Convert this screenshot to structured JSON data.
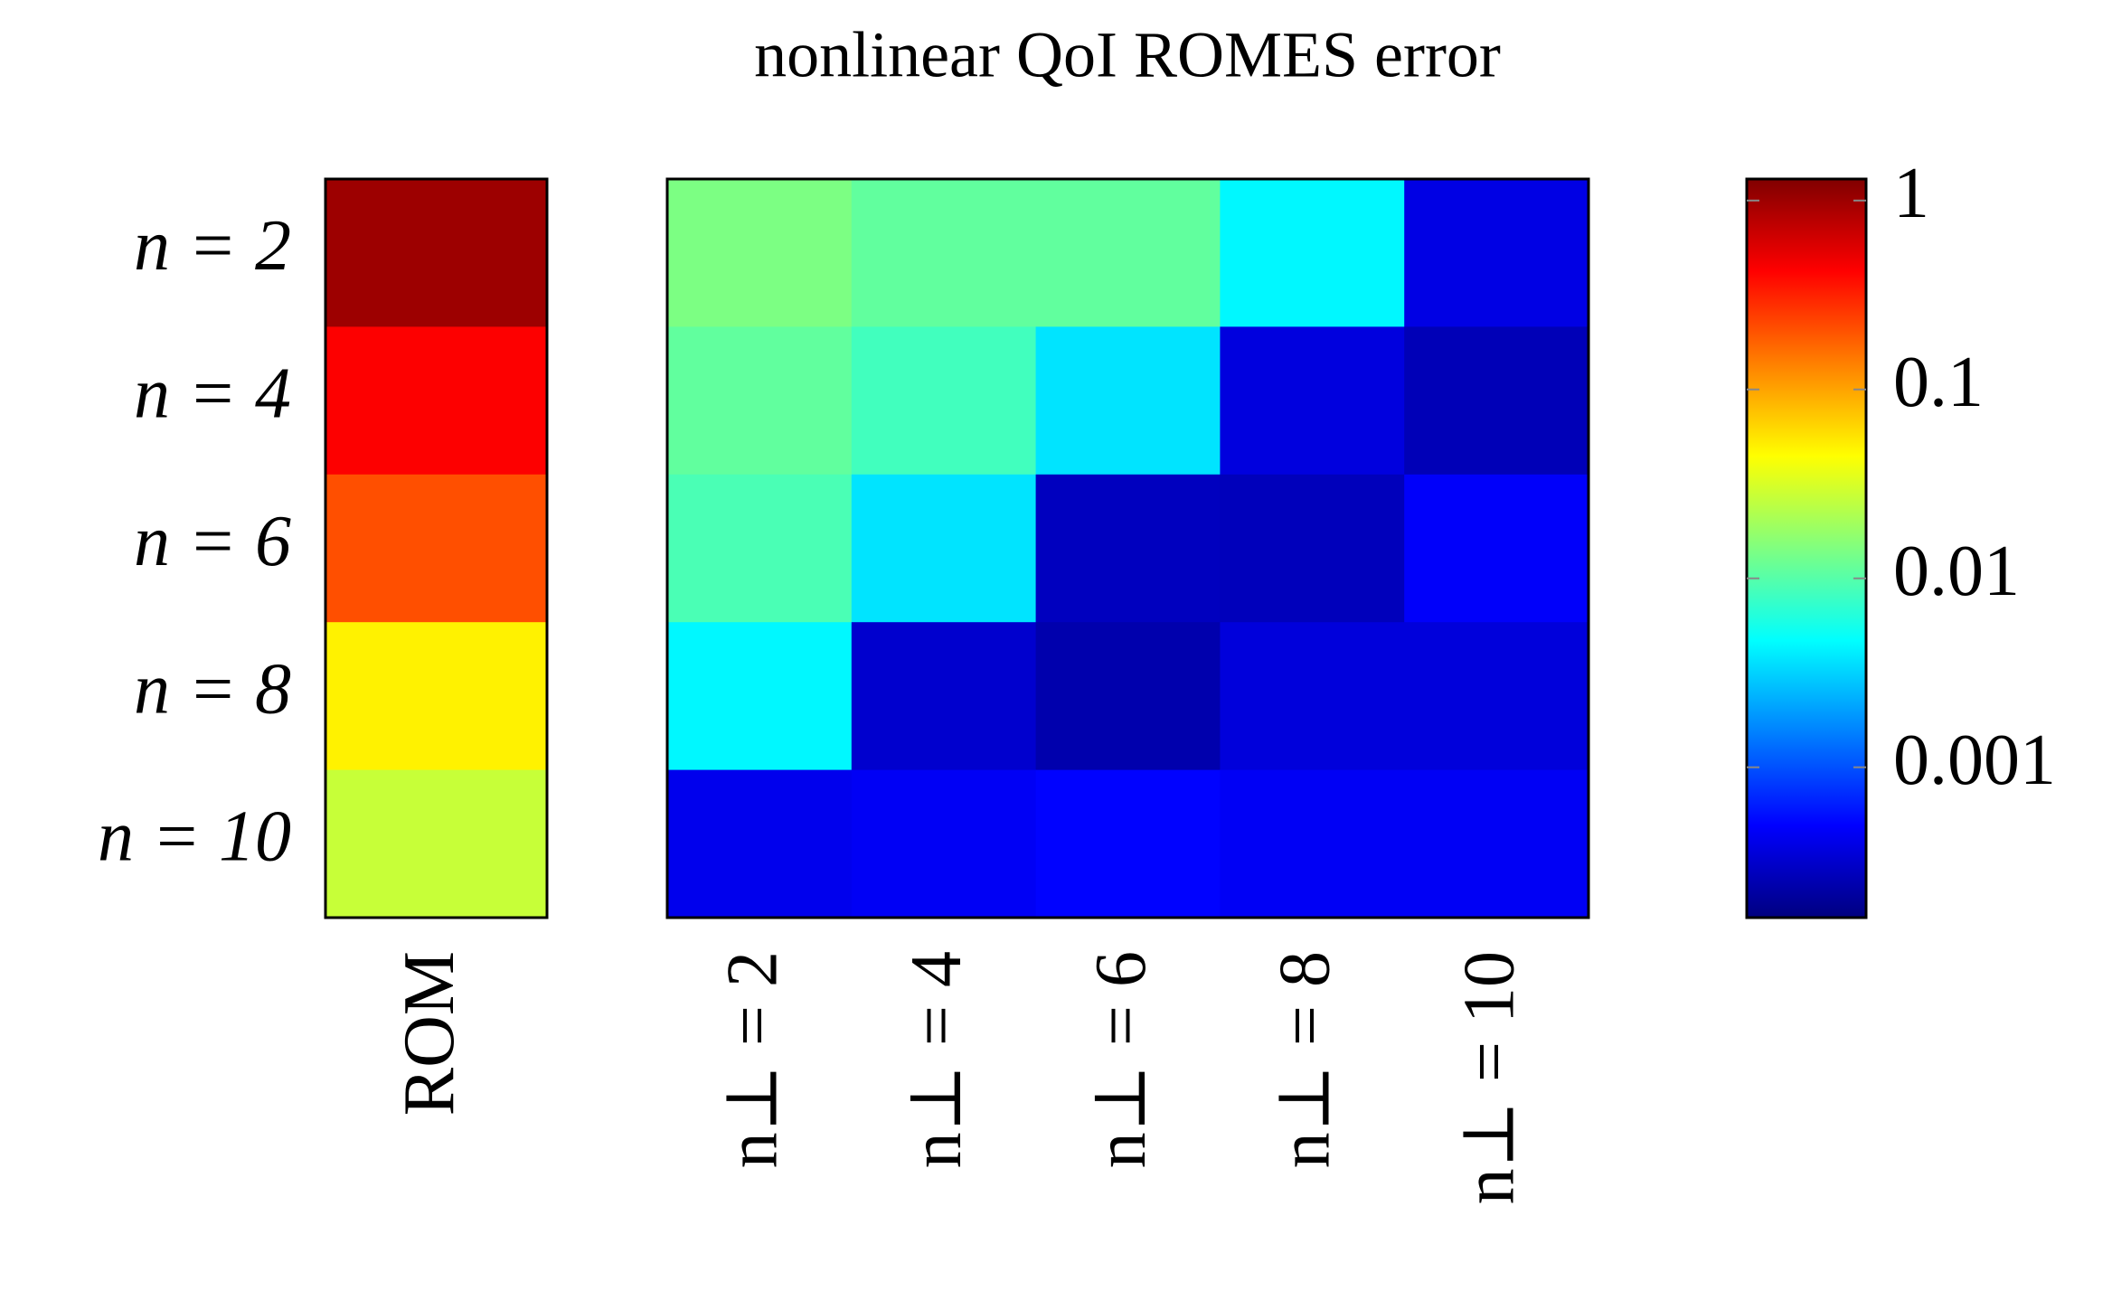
{
  "chart_data": {
    "type": "heatmap",
    "title": "nonlinear QoI ROMES error",
    "rows": [
      "n = 2",
      "n = 4",
      "n = 6",
      "n = 8",
      "n = 10"
    ],
    "panels": [
      {
        "columns": [
          "ROM"
        ],
        "values": [
          [
            1.0
          ],
          [
            0.43
          ],
          [
            0.21
          ],
          [
            0.05
          ],
          [
            0.027
          ]
        ]
      },
      {
        "columns": [
          "n⊥ = 2",
          "n⊥ = 4",
          "n⊥ = 6",
          "n⊥ = 8",
          "n⊥ = 10"
        ],
        "values": [
          [
            0.014,
            0.011,
            0.011,
            0.0044,
            0.00039
          ],
          [
            0.011,
            0.0083,
            0.0037,
            0.00037,
            0.00026
          ],
          [
            0.009,
            0.0037,
            0.00028,
            0.00027,
            0.00047
          ],
          [
            0.0044,
            0.00032,
            0.00024,
            0.00036,
            0.00036
          ],
          [
            0.00042,
            0.00045,
            0.0005,
            0.00045,
            0.00045
          ]
        ]
      }
    ],
    "colormap": "jet",
    "log_scale": true,
    "clim": [
      0.00016,
      1.3
    ],
    "colorbar_ticks": [
      1,
      0.1,
      0.01,
      0.001
    ]
  }
}
